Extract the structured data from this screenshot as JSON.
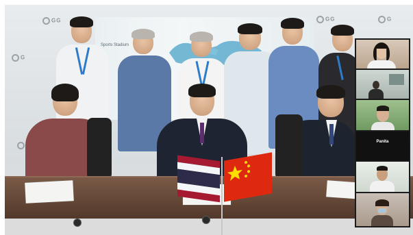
{
  "window": {
    "indicator_color": "#e53935"
  },
  "meeting": {
    "wall_sign_text": "Sports Stadium",
    "main_tile": "conference-room-feed"
  },
  "participants": [
    {
      "id": "p1",
      "name": "",
      "kind": "video"
    },
    {
      "id": "p2",
      "name": "",
      "kind": "video"
    },
    {
      "id": "p3",
      "name": "",
      "kind": "video"
    },
    {
      "id": "p4",
      "name": "Panita",
      "kind": "name-only"
    },
    {
      "id": "p5",
      "name": "",
      "kind": "video"
    },
    {
      "id": "p6",
      "name": "",
      "kind": "video"
    }
  ],
  "colors": {
    "thai_flag": [
      "#a51931",
      "#f4f5f8",
      "#2d2a4a"
    ],
    "china_flag": "#de2910",
    "china_star": "#ffde00",
    "strip_background": "#1b1b1b"
  }
}
